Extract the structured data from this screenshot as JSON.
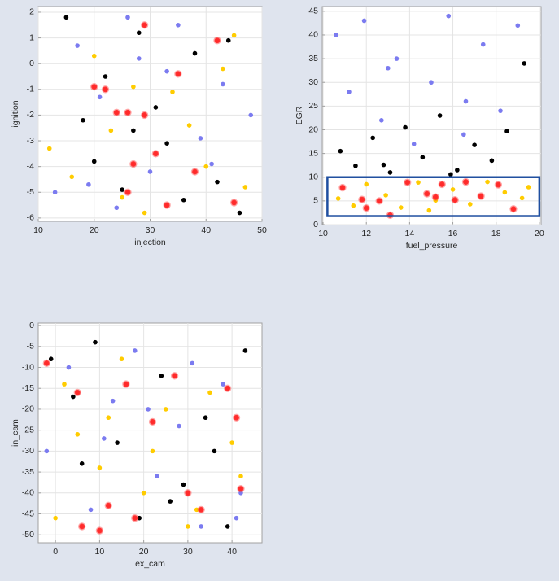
{
  "chart_data": [
    {
      "type": "scatter",
      "xlabel": "injection",
      "ylabel": "ignition",
      "grid": true,
      "xlim": [
        10,
        50
      ],
      "ylim": [
        -6.13,
        2.22
      ],
      "xticks": [
        10,
        20,
        30,
        40,
        50
      ],
      "yticks": [
        -6,
        -5,
        -4,
        -3,
        -2,
        -1,
        0,
        1,
        2
      ],
      "series": [
        {
          "color": "#000000",
          "x": [
            15,
            22,
            28,
            33,
            38,
            42,
            46,
            18,
            25,
            31,
            36,
            44,
            20,
            27
          ],
          "y": [
            1.8,
            -0.5,
            1.2,
            -3.1,
            0.4,
            -4.6,
            -5.8,
            -2.2,
            -4.9,
            -1.7,
            -5.3,
            0.9,
            -3.8,
            -2.6
          ]
        },
        {
          "color": "#7b7bf0",
          "x": [
            13,
            17,
            21,
            26,
            30,
            35,
            39,
            43,
            48,
            24,
            33,
            41,
            19,
            28
          ],
          "y": [
            -5.0,
            0.7,
            -1.3,
            1.8,
            -4.2,
            1.5,
            -2.9,
            -0.8,
            -2.0,
            -5.6,
            -0.3,
            -3.9,
            -4.7,
            0.2
          ]
        },
        {
          "color": "#ffcc00",
          "x": [
            12,
            16,
            23,
            29,
            34,
            40,
            45,
            47,
            20,
            27,
            37,
            31,
            25,
            43
          ],
          "y": [
            -3.3,
            -4.4,
            -2.6,
            -5.8,
            -1.1,
            -4.0,
            1.1,
            -4.8,
            0.3,
            -0.9,
            -2.4,
            -3.5,
            -5.2,
            -0.2
          ]
        },
        {
          "color": "#ff2a2a",
          "x": [
            20,
            22,
            26,
            27,
            29,
            31,
            33,
            35,
            26,
            42,
            38,
            24,
            29,
            45
          ],
          "y": [
            -0.9,
            -1.0,
            -1.9,
            -3.9,
            1.5,
            -3.5,
            -5.5,
            -0.4,
            -5.0,
            0.9,
            -4.2,
            -1.9,
            -2.0,
            -5.4
          ]
        }
      ]
    },
    {
      "type": "scatter",
      "xlabel": "fuel_pressure",
      "ylabel": "EGR",
      "grid": true,
      "xlim": [
        9.96,
        20.08
      ],
      "ylim": [
        0,
        46
      ],
      "xticks": [
        10,
        12,
        14,
        16,
        18,
        20
      ],
      "yticks": [
        0,
        5,
        10,
        15,
        20,
        25,
        30,
        35,
        40,
        45
      ],
      "brush": {
        "x": [
          10.2,
          20
        ],
        "y": [
          1.8,
          10
        ],
        "color": "#1f4fa0"
      },
      "series": [
        {
          "color": "#000000",
          "x": [
            10.8,
            11.5,
            12.3,
            13.1,
            13.8,
            14.6,
            15.4,
            16.2,
            17.0,
            17.8,
            18.5,
            19.3,
            15.9,
            12.8
          ],
          "y": [
            15.5,
            12.4,
            18.3,
            11.0,
            20.5,
            14.2,
            23.0,
            11.5,
            16.8,
            13.5,
            19.7,
            34,
            10.6,
            12.6
          ]
        },
        {
          "color": "#7b7bf0",
          "x": [
            10.6,
            11.2,
            11.9,
            12.7,
            13.4,
            14.2,
            15.0,
            15.8,
            16.6,
            17.4,
            18.2,
            19.0,
            16.5,
            13.0
          ],
          "y": [
            40,
            28,
            43,
            22,
            35,
            17,
            30,
            44,
            26,
            38,
            24,
            42,
            19,
            33
          ]
        },
        {
          "color": "#ffcc00",
          "x": [
            10.7,
            11.4,
            12.0,
            12.9,
            13.6,
            14.4,
            15.2,
            16.0,
            16.8,
            17.6,
            18.4,
            19.2,
            19.5,
            14.9
          ],
          "y": [
            5.5,
            4.0,
            8.5,
            6.2,
            3.6,
            8.9,
            5.1,
            7.4,
            4.3,
            9.0,
            6.8,
            5.6,
            7.9,
            3.0
          ]
        },
        {
          "color": "#ff2a2a",
          "x": [
            10.9,
            11.8,
            12.0,
            13.1,
            13.9,
            14.8,
            15.5,
            16.1,
            16.6,
            17.3,
            18.1,
            18.8,
            15.2,
            12.6
          ],
          "y": [
            7.8,
            5.3,
            3.5,
            2.0,
            8.9,
            6.5,
            8.5,
            5.2,
            9.0,
            6.0,
            8.4,
            3.3,
            5.8,
            5.0
          ]
        }
      ]
    },
    {
      "type": "scatter",
      "xlabel": "ex_cam",
      "ylabel": "in_cam",
      "grid": true,
      "xlim": [
        -3.9,
        46.8
      ],
      "ylim": [
        -51.9,
        0.6
      ],
      "xticks": [
        0,
        10,
        20,
        30,
        40
      ],
      "yticks": [
        -50,
        -45,
        -40,
        -35,
        -30,
        -25,
        -20,
        -15,
        -10,
        -5,
        0
      ],
      "series": [
        {
          "color": "#000000",
          "x": [
            -1,
            4,
            9,
            14,
            19,
            24,
            29,
            34,
            39,
            43,
            6,
            16,
            26,
            36
          ],
          "y": [
            -8,
            -17,
            -4,
            -28,
            -46,
            -12,
            -38,
            -22,
            -48,
            -6,
            -33,
            -14,
            -42,
            -30
          ]
        },
        {
          "color": "#7b7bf0",
          "x": [
            -2,
            3,
            8,
            13,
            18,
            23,
            28,
            33,
            38,
            42,
            11,
            21,
            31,
            41
          ],
          "y": [
            -30,
            -10,
            -44,
            -18,
            -6,
            -36,
            -24,
            -48,
            -14,
            -40,
            -27,
            -20,
            -9,
            -46
          ]
        },
        {
          "color": "#ffcc00",
          "x": [
            0,
            5,
            10,
            15,
            20,
            25,
            30,
            35,
            40,
            2,
            12,
            22,
            32,
            42
          ],
          "y": [
            -46,
            -26,
            -34,
            -8,
            -40,
            -20,
            -48,
            -16,
            -28,
            -14,
            -22,
            -30,
            -44,
            -36
          ]
        },
        {
          "color": "#ff2a2a",
          "x": [
            -2,
            5,
            10,
            12,
            16,
            18,
            22,
            27,
            30,
            33,
            39,
            41,
            6,
            42
          ],
          "y": [
            -9,
            -16,
            -49,
            -43,
            -14,
            -46,
            -23,
            -12,
            -40,
            -44,
            -15,
            -22,
            -48,
            -39
          ]
        }
      ]
    }
  ]
}
